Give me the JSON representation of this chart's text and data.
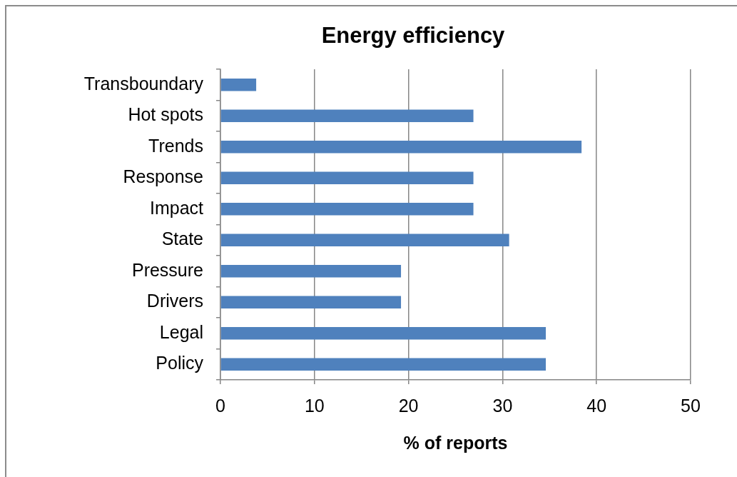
{
  "chart_data": {
    "type": "bar",
    "orientation": "horizontal",
    "title": "Energy efficiency",
    "xlabel": "% of reports",
    "categories": [
      "Transboundary",
      "Hot spots",
      "Trends",
      "Response",
      "Impact",
      "State",
      "Pressure",
      "Drivers",
      "Legal",
      "Policy"
    ],
    "values": [
      3.8,
      26.9,
      38.4,
      26.9,
      26.9,
      30.7,
      19.2,
      19.2,
      34.6,
      34.6
    ],
    "color": "#4f81bd",
    "xlim": [
      0,
      50
    ],
    "xticks": [
      0,
      10,
      20,
      30,
      40,
      50
    ],
    "grid": "x"
  }
}
